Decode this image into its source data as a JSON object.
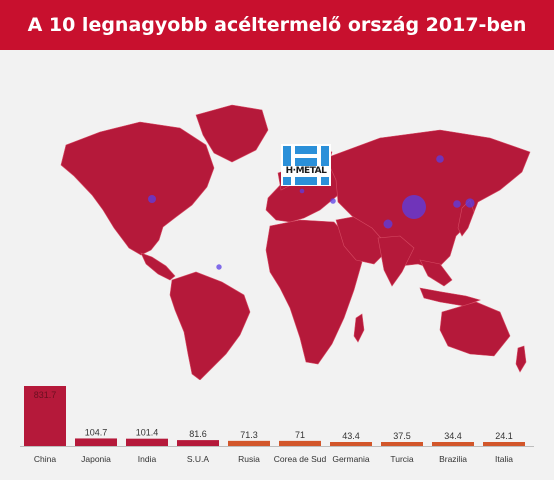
{
  "header": {
    "title": "A 10 legnagyobb acéltermelő ország 2017-ben"
  },
  "logo": {
    "text": "H·METAL"
  },
  "colors": {
    "accent": "#c8102e",
    "land": "#b5193a",
    "bubble": "#5a3ee6",
    "bar_top": "#b5193a",
    "bar_orange": "#d2562a"
  },
  "chart_data": {
    "type": "bar",
    "categories": [
      "China",
      "Japonia",
      "India",
      "S.U.A",
      "Rusia",
      "Corea de Sud",
      "Germania",
      "Turcia",
      "Brazilia",
      "Italia"
    ],
    "values": [
      831.7,
      104.7,
      101.4,
      81.6,
      71.3,
      71,
      43.4,
      37.5,
      34.4,
      24.1
    ],
    "value_labels": [
      "831.7",
      "104.7",
      "101.4",
      "81.6",
      "71.3",
      "71",
      "43.4",
      "37.5",
      "34.4",
      "24.1"
    ],
    "ylim": [
      0,
      831.7
    ]
  }
}
